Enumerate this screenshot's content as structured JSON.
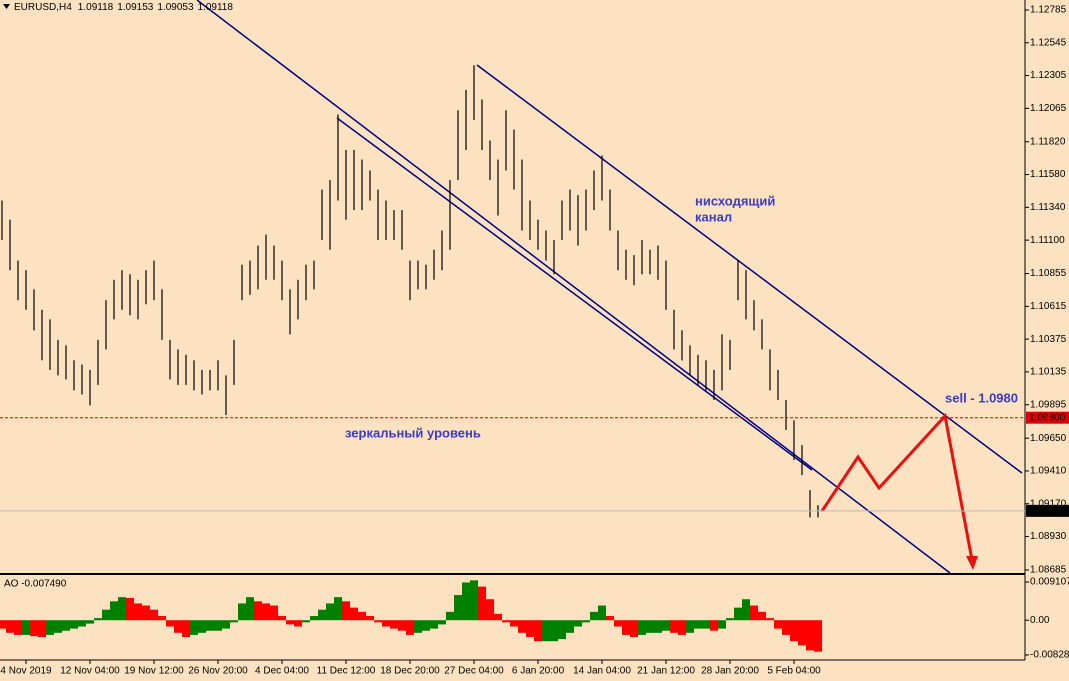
{
  "chart_data": [
    {
      "type": "ohlc",
      "symbol": "EURUSD,H4",
      "quote": [
        1.09118,
        1.09153,
        1.09053,
        1.09118
      ],
      "color": "#000000",
      "categories": [
        null,
        null,
        null,
        "4 Nov 2019",
        null,
        null,
        null,
        null,
        null,
        null,
        null,
        "12 Nov 04:00",
        null,
        null,
        null,
        null,
        null,
        null,
        null,
        "19 Nov 12:00",
        null,
        null,
        null,
        null,
        null,
        null,
        null,
        "26 Nov 20:00",
        null,
        null,
        null,
        null,
        null,
        null,
        null,
        "4 Dec 04:00",
        null,
        null,
        null,
        null,
        null,
        null,
        null,
        "11 Dec 12:00",
        null,
        null,
        null,
        null,
        null,
        null,
        null,
        "18 Dec 20:00",
        null,
        null,
        null,
        null,
        null,
        null,
        null,
        "27 Dec 04:00",
        null,
        null,
        null,
        null,
        null,
        null,
        null,
        "6 Jan 20:00",
        null,
        null,
        null,
        null,
        null,
        null,
        null,
        "14 Jan 04:00",
        null,
        null,
        null,
        null,
        null,
        null,
        null,
        "21 Jan 12:00",
        null,
        null,
        null,
        null,
        null,
        null,
        null,
        "28 Jan 20:00",
        null,
        null,
        null,
        null,
        null,
        null,
        null,
        "5 Feb 04:00",
        null,
        null,
        null
      ],
      "high": [
        1.1139,
        1.1125,
        1.1095,
        1.1088,
        1.1074,
        1.1059,
        1.1052,
        1.1037,
        1.1033,
        1.1022,
        1.1019,
        1.1015,
        1.1037,
        1.1066,
        1.1081,
        1.1088,
        1.1085,
        1.1081,
        1.1088,
        1.1095,
        1.1074,
        1.1037,
        1.103,
        1.1026,
        1.1022,
        1.1015,
        1.1015,
        1.1022,
        1.1011,
        1.1037,
        1.1092,
        1.1095,
        1.1106,
        1.1114,
        1.1106,
        1.1095,
        1.1074,
        1.1081,
        1.1092,
        1.1095,
        1.1147,
        1.1154,
        1.1202,
        1.1176,
        1.1176,
        1.1169,
        1.1161,
        1.1147,
        1.1139,
        1.1132,
        1.1132,
        1.1095,
        1.1095,
        1.1092,
        1.1103,
        1.1117,
        1.1154,
        1.1205,
        1.122,
        1.1238,
        1.1213,
        1.1183,
        1.1169,
        1.1205,
        1.1191,
        1.1169,
        1.1139,
        1.1125,
        1.1117,
        1.111,
        1.1139,
        1.1147,
        1.1143,
        1.1147,
        1.1161,
        1.1172,
        1.1147,
        1.1117,
        1.1103,
        1.1099,
        1.111,
        1.1103,
        1.1106,
        1.1095,
        1.1059,
        1.1044,
        1.1033,
        1.1026,
        1.1022,
        1.1015,
        1.1041,
        1.1037,
        1.1095,
        1.1088,
        1.1066,
        1.1052,
        1.103,
        1.1015,
        1.0993,
        1.0978,
        1.096,
        1.0927,
        1.0916
      ],
      "low": [
        1.111,
        1.1088,
        1.1066,
        1.1059,
        1.1044,
        1.1022,
        1.1015,
        1.1011,
        1.1008,
        1.1,
        1.0997,
        1.0989,
        1.1004,
        1.103,
        1.1052,
        1.1059,
        1.1055,
        1.1052,
        1.1063,
        1.1066,
        1.1037,
        1.1008,
        1.1004,
        1.1004,
        1.1,
        1.0997,
        1.1,
        1.1,
        1.0982,
        1.1004,
        1.1066,
        1.107,
        1.1074,
        1.1081,
        1.1081,
        1.1066,
        1.1041,
        1.1052,
        1.1066,
        1.1074,
        1.111,
        1.1103,
        1.1139,
        1.1125,
        1.1132,
        1.1132,
        1.1139,
        1.111,
        1.111,
        1.111,
        1.1103,
        1.1066,
        1.1074,
        1.1074,
        1.1081,
        1.1088,
        1.1103,
        1.1154,
        1.1176,
        1.1198,
        1.1176,
        1.1154,
        1.1128,
        1.1161,
        1.1147,
        1.1117,
        1.111,
        1.1103,
        1.1095,
        1.1085,
        1.111,
        1.1117,
        1.1106,
        1.1117,
        1.1132,
        1.1139,
        1.1117,
        1.1088,
        1.1081,
        1.1077,
        1.1085,
        1.1085,
        1.1081,
        1.1059,
        1.103,
        1.1022,
        1.1011,
        1.1004,
        1.1,
        1.0993,
        1.1,
        1.1015,
        1.1066,
        1.1052,
        1.1044,
        1.103,
        1.1,
        1.0993,
        1.0971,
        1.0949,
        1.0938,
        1.0907,
        1.0907
      ],
      "ylim": [
        1.08663,
        1.12858
      ],
      "yticks": [
        1.12785,
        1.12545,
        1.12305,
        1.12065,
        {
          "value": 1.1182,
          "label": "1.11820"
        },
        {
          "value": 1.1158,
          "label": "1.11580"
        },
        {
          "value": 1.1134,
          "label": "1.11340"
        },
        {
          "value": 1.111,
          "label": "1.11100"
        },
        1.10855,
        1.10615,
        1.10375,
        1.10135,
        1.09895,
        {
          "value": 1.0965,
          "label": "1.09650"
        },
        {
          "value": 1.0941,
          "label": "1.09410"
        },
        {
          "value": 1.0917,
          "label": "1.09170"
        },
        {
          "value": 1.0893,
          "label": "1.08930"
        },
        1.08685
      ],
      "level": {
        "value": 1.098,
        "label": "1.09800"
      },
      "last_price": 1.09118,
      "annotations": {
        "channel": [
          "нисходящий",
          "канал"
        ],
        "mirror": "зеркальный уровень",
        "sell": "sell - 1.0980"
      }
    },
    {
      "type": "bar",
      "title": "AO -0.007490",
      "up_color": "#008000",
      "down_color": "#ff0000",
      "values": [
        -0.002,
        -0.003,
        -0.0035,
        -0.0035,
        -0.0038,
        -0.004,
        -0.0035,
        -0.003,
        -0.0025,
        -0.002,
        -0.0015,
        -0.0008,
        0.0005,
        0.0025,
        0.0045,
        0.0055,
        0.0053,
        0.004,
        0.0035,
        0.0025,
        0.001,
        -0.0015,
        -0.003,
        -0.004,
        -0.0035,
        -0.003,
        -0.0025,
        -0.0025,
        -0.002,
        -0.0005,
        0.004,
        0.0055,
        0.0045,
        0.004,
        0.0035,
        0.001,
        -0.001,
        -0.0015,
        -0.0005,
        0.001,
        0.0025,
        0.004,
        0.0055,
        0.0045,
        0.003,
        0.002,
        0.001,
        -0.0005,
        -0.0015,
        -0.002,
        -0.0025,
        -0.0035,
        -0.003,
        -0.0025,
        -0.002,
        -0.001,
        0.002,
        0.006,
        0.009,
        0.0095,
        0.008,
        0.005,
        0.0015,
        -0.0005,
        -0.0015,
        -0.003,
        -0.004,
        -0.005,
        -0.005,
        -0.005,
        -0.0045,
        -0.003,
        -0.0015,
        -0.0005,
        0.002,
        0.0035,
        0.001,
        -0.0015,
        -0.0035,
        -0.004,
        -0.0035,
        -0.003,
        -0.003,
        -0.0025,
        -0.003,
        -0.0035,
        -0.003,
        -0.002,
        -0.002,
        -0.0025,
        -0.002,
        0.0005,
        0.003,
        0.005,
        0.0035,
        0.002,
        0.0005,
        -0.002,
        -0.0035,
        -0.005,
        -0.006,
        -0.0072,
        -0.00749
      ],
      "ylim": [
        -0.00948,
        0.0103
      ],
      "yticks": [
        0.009107,
        {
          "value": 0,
          "label": "0.00"
        },
        -0.008281
      ]
    }
  ]
}
